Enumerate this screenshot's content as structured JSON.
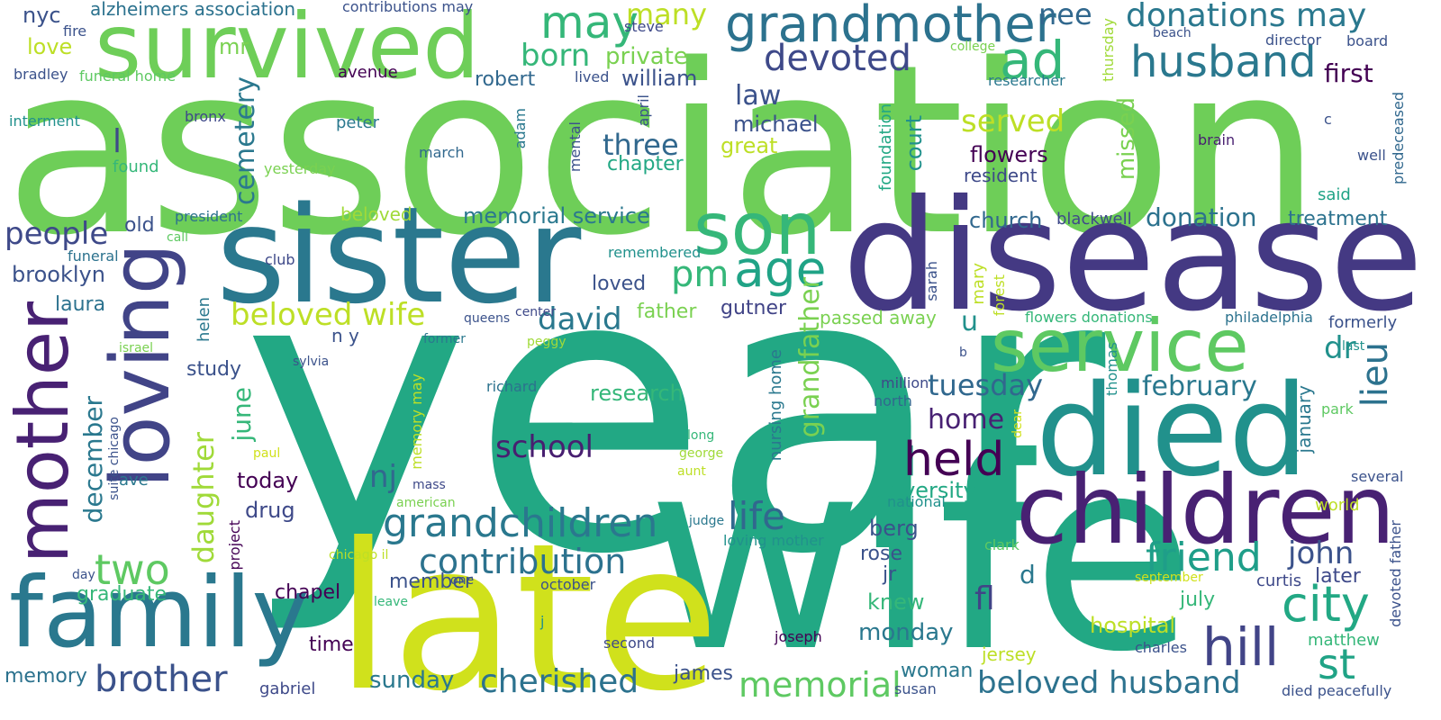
{
  "words": [
    {
      "text": "association",
      "color": "#6ece58"
    },
    {
      "text": "year",
      "color": "#22a884"
    },
    {
      "text": "wife",
      "color": "#22a884"
    },
    {
      "text": "disease",
      "color": "#443983"
    },
    {
      "text": "late",
      "color": "#d0e11c"
    },
    {
      "text": "sister",
      "color": "#2a788e"
    },
    {
      "text": "died",
      "color": "#21918c"
    },
    {
      "text": "children",
      "color": "#482173"
    },
    {
      "text": "survived",
      "color": "#6ece58"
    },
    {
      "text": "mother",
      "color": "#482173"
    },
    {
      "text": "loving",
      "color": "#414487"
    },
    {
      "text": "family",
      "color": "#2a788e"
    },
    {
      "text": "service",
      "color": "#5ec962"
    },
    {
      "text": "son",
      "color": "#35b779"
    },
    {
      "text": "grandmother",
      "color": "#2c728e"
    },
    {
      "text": "husband",
      "color": "#2a788e"
    },
    {
      "text": "ad",
      "color": "#35b779"
    },
    {
      "text": "donations may",
      "color": "#2a788e"
    },
    {
      "text": "may",
      "color": "#35b779"
    },
    {
      "text": "many",
      "color": "#bddf26"
    },
    {
      "text": "devoted",
      "color": "#3e4989"
    },
    {
      "text": "nee",
      "color": "#31688e"
    },
    {
      "text": "born",
      "color": "#35b779"
    },
    {
      "text": "private",
      "color": "#7ad151"
    },
    {
      "text": "william",
      "color": "#3b528b"
    },
    {
      "text": "robert",
      "color": "#31688e"
    },
    {
      "text": "first",
      "color": "#440154"
    },
    {
      "text": "law",
      "color": "#3b528b"
    },
    {
      "text": "served",
      "color": "#bddf26"
    },
    {
      "text": "flowers",
      "color": "#440154"
    },
    {
      "text": "michael",
      "color": "#3b528b"
    },
    {
      "text": "three",
      "color": "#31688e"
    },
    {
      "text": "great",
      "color": "#bddf26"
    },
    {
      "text": "chapter",
      "color": "#22a884"
    },
    {
      "text": "cemetery",
      "color": "#2a788e"
    },
    {
      "text": "court",
      "color": "#21918c"
    },
    {
      "text": "missed",
      "color": "#7ad151"
    },
    {
      "text": "foundation",
      "color": "#22a884"
    },
    {
      "text": "resident",
      "color": "#3e4989"
    },
    {
      "text": "brain",
      "color": "#481f70"
    },
    {
      "text": "well",
      "color": "#3b528b"
    },
    {
      "text": "predeceased",
      "color": "#31688e"
    },
    {
      "text": "c",
      "color": "#3b528b"
    },
    {
      "text": "said",
      "color": "#20a386"
    },
    {
      "text": "treatment",
      "color": "#2c728e"
    },
    {
      "text": "donation",
      "color": "#2c728e"
    },
    {
      "text": "blackwell",
      "color": "#3e4989"
    },
    {
      "text": "church",
      "color": "#31688e"
    },
    {
      "text": "memorial service",
      "color": "#2a788e"
    },
    {
      "text": "beloved",
      "color": "#a0da39"
    },
    {
      "text": "president",
      "color": "#2c728e"
    },
    {
      "text": "people",
      "color": "#3e4989"
    },
    {
      "text": "old",
      "color": "#3b528b"
    },
    {
      "text": "brooklyn",
      "color": "#3b528b"
    },
    {
      "text": "laura",
      "color": "#2c728e"
    },
    {
      "text": "pm",
      "color": "#35b779"
    },
    {
      "text": "age",
      "color": "#20a386"
    },
    {
      "text": "beloved wife",
      "color": "#bddf26"
    },
    {
      "text": "david",
      "color": "#2a788e"
    },
    {
      "text": "loved",
      "color": "#3b528b"
    },
    {
      "text": "father",
      "color": "#7ad151"
    },
    {
      "text": "gutner",
      "color": "#414487"
    },
    {
      "text": "grandfather",
      "color": "#7ad151"
    },
    {
      "text": "passed away",
      "color": "#7ad151"
    },
    {
      "text": "u",
      "color": "#21918c"
    },
    {
      "text": "dr",
      "color": "#21918c"
    },
    {
      "text": "lieu",
      "color": "#2c728e"
    },
    {
      "text": "february",
      "color": "#2a788e"
    },
    {
      "text": "tuesday",
      "color": "#31688e"
    },
    {
      "text": "held",
      "color": "#440154"
    },
    {
      "text": "home",
      "color": "#482173"
    },
    {
      "text": "nj",
      "color": "#31688e"
    },
    {
      "text": "school",
      "color": "#481f70"
    },
    {
      "text": "research",
      "color": "#35b779"
    },
    {
      "text": "grandchildren",
      "color": "#2a788e"
    },
    {
      "text": "life",
      "color": "#31688e"
    },
    {
      "text": "university",
      "color": "#22a884"
    },
    {
      "text": "city",
      "color": "#22a884"
    },
    {
      "text": "friend",
      "color": "#1f9e89"
    },
    {
      "text": "john",
      "color": "#3b528b"
    },
    {
      "text": "hill",
      "color": "#414487"
    },
    {
      "text": "st",
      "color": "#20a386"
    },
    {
      "text": "two",
      "color": "#5ec962"
    },
    {
      "text": "daughter",
      "color": "#a0da39"
    },
    {
      "text": "june",
      "color": "#35b779"
    },
    {
      "text": "december",
      "color": "#2a788e"
    },
    {
      "text": "study",
      "color": "#3b528b"
    },
    {
      "text": "today",
      "color": "#440154"
    },
    {
      "text": "drug",
      "color": "#3e4989"
    },
    {
      "text": "contribution",
      "color": "#2c728e"
    },
    {
      "text": "member",
      "color": "#3b528b"
    },
    {
      "text": "chapel",
      "color": "#440154"
    },
    {
      "text": "graduate",
      "color": "#35b779"
    },
    {
      "text": "brother",
      "color": "#3b528b"
    },
    {
      "text": "cherished",
      "color": "#2c728e"
    },
    {
      "text": "memorial",
      "color": "#5ec962"
    },
    {
      "text": "beloved husband",
      "color": "#2c728e"
    },
    {
      "text": "fl",
      "color": "#414487"
    },
    {
      "text": "d",
      "color": "#2a788e"
    },
    {
      "text": "berg",
      "color": "#3b528b"
    },
    {
      "text": "rose",
      "color": "#3b528b"
    },
    {
      "text": "jr",
      "color": "#3b528b"
    },
    {
      "text": "knew",
      "color": "#35b779"
    },
    {
      "text": "monday",
      "color": "#2a788e"
    },
    {
      "text": "hospital",
      "color": "#bddf26"
    },
    {
      "text": "july",
      "color": "#35b779"
    },
    {
      "text": "later",
      "color": "#3e4989"
    },
    {
      "text": "curtis",
      "color": "#3e4989"
    },
    {
      "text": "time",
      "color": "#440154"
    },
    {
      "text": "sunday",
      "color": "#2a788e"
    },
    {
      "text": "james",
      "color": "#3b528b"
    },
    {
      "text": "woman",
      "color": "#2a788e"
    },
    {
      "text": "memory",
      "color": "#2c728e"
    },
    {
      "text": "gabriel",
      "color": "#3e4989"
    },
    {
      "text": "susan",
      "color": "#3b528b"
    },
    {
      "text": "died peacefully",
      "color": "#3b528b"
    },
    {
      "text": "matthew",
      "color": "#35b779"
    },
    {
      "text": "jersey",
      "color": "#bddf26"
    },
    {
      "text": "charles",
      "color": "#3b528b"
    },
    {
      "text": "joseph",
      "color": "#440154"
    },
    {
      "text": "second",
      "color": "#3e4989"
    },
    {
      "text": "alzheimers association",
      "color": "#2c728e"
    },
    {
      "text": "contributions may",
      "color": "#3b528b"
    },
    {
      "text": "nyc",
      "color": "#3b528b"
    },
    {
      "text": "love",
      "color": "#bddf26"
    },
    {
      "text": "mr",
      "color": "#7ad151"
    },
    {
      "text": "fire",
      "color": "#3b528b"
    },
    {
      "text": "bradley",
      "color": "#3b528b"
    },
    {
      "text": "funeral home",
      "color": "#5ec962"
    },
    {
      "text": "interment",
      "color": "#21918c"
    },
    {
      "text": "avenue",
      "color": "#440154"
    },
    {
      "text": "l",
      "color": "#3e4989"
    },
    {
      "text": "bronx",
      "color": "#3e4989"
    },
    {
      "text": "peter",
      "color": "#2a788e"
    },
    {
      "text": "found",
      "color": "#35b779"
    },
    {
      "text": "yesterday",
      "color": "#7ad151"
    },
    {
      "text": "march",
      "color": "#31688e"
    },
    {
      "text": "adam",
      "color": "#2a788e"
    },
    {
      "text": "mental",
      "color": "#3b528b"
    },
    {
      "text": "april",
      "color": "#3b528b"
    },
    {
      "text": "lived",
      "color": "#3b528b"
    },
    {
      "text": "steve",
      "color": "#3e4989"
    },
    {
      "text": "thursday",
      "color": "#a0da39"
    },
    {
      "text": "college",
      "color": "#7ad151"
    },
    {
      "text": "beach",
      "color": "#3b528b"
    },
    {
      "text": "director",
      "color": "#3b528b"
    },
    {
      "text": "board",
      "color": "#3b528b"
    },
    {
      "text": "researcher",
      "color": "#2a788e"
    },
    {
      "text": "call",
      "color": "#5ec962"
    },
    {
      "text": "funeral",
      "color": "#2c728e"
    },
    {
      "text": "club",
      "color": "#3e4989"
    },
    {
      "text": "remembered",
      "color": "#21918c"
    },
    {
      "text": "sarah",
      "color": "#3b528b"
    },
    {
      "text": "forest",
      "color": "#bddf26"
    },
    {
      "text": "mary",
      "color": "#bddf26"
    },
    {
      "text": "flowers donations",
      "color": "#35b779"
    },
    {
      "text": "philadelphia",
      "color": "#2c728e"
    },
    {
      "text": "formerly",
      "color": "#3b528b"
    },
    {
      "text": "last",
      "color": "#21918c"
    },
    {
      "text": "center",
      "color": "#3e4989"
    },
    {
      "text": "queens",
      "color": "#3b528b"
    },
    {
      "text": "n y",
      "color": "#3b528b"
    },
    {
      "text": "former",
      "color": "#2a788e"
    },
    {
      "text": "israel",
      "color": "#7ad151"
    },
    {
      "text": "peggy",
      "color": "#a0da39"
    },
    {
      "text": "sylvia",
      "color": "#3b528b"
    },
    {
      "text": "helen",
      "color": "#2a788e"
    },
    {
      "text": "nursing home",
      "color": "#2a788e"
    },
    {
      "text": "memory may",
      "color": "#bddf26"
    },
    {
      "text": "richard",
      "color": "#2c728e"
    },
    {
      "text": "million",
      "color": "#3e4989"
    },
    {
      "text": "north",
      "color": "#31688e"
    },
    {
      "text": "b",
      "color": "#3b528b"
    },
    {
      "text": "thomas",
      "color": "#21918c"
    },
    {
      "text": "january",
      "color": "#2a788e"
    },
    {
      "text": "park",
      "color": "#5ec962"
    },
    {
      "text": "paul",
      "color": "#d0e11c"
    },
    {
      "text": "long",
      "color": "#35b779"
    },
    {
      "text": "george",
      "color": "#a0da39"
    },
    {
      "text": "aunt",
      "color": "#bddf26"
    },
    {
      "text": "national",
      "color": "#21918c"
    },
    {
      "text": "dear",
      "color": "#d0e11c"
    },
    {
      "text": "world",
      "color": "#bddf26"
    },
    {
      "text": "several",
      "color": "#3b528b"
    },
    {
      "text": "devoted father",
      "color": "#3b528b"
    },
    {
      "text": "suite chicago",
      "color": "#3b528b"
    },
    {
      "text": "ave",
      "color": "#2a788e"
    },
    {
      "text": "mass",
      "color": "#3e4989"
    },
    {
      "text": "american",
      "color": "#7ad151"
    },
    {
      "text": "judge",
      "color": "#2a788e"
    },
    {
      "text": "loving mother",
      "color": "#21918c"
    },
    {
      "text": "project",
      "color": "#440154"
    },
    {
      "text": "chicago il",
      "color": "#bddf26"
    },
    {
      "text": "clark",
      "color": "#5ec962"
    },
    {
      "text": "september",
      "color": "#d0e11c"
    },
    {
      "text": "day",
      "color": "#3b528b"
    },
    {
      "text": "leave",
      "color": "#35b779"
    },
    {
      "text": "one",
      "color": "#3b528b"
    },
    {
      "text": "october",
      "color": "#3b528b"
    },
    {
      "text": "j",
      "color": "#21918c"
    }
  ]
}
